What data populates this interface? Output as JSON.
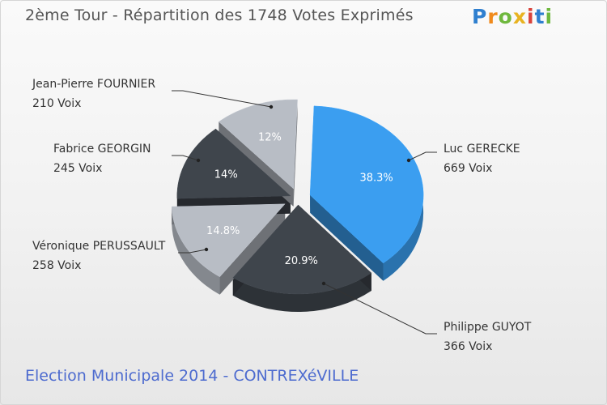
{
  "header": {
    "title": "2ème Tour - Répartition des 1748 Votes Exprimés",
    "logo": [
      "P",
      "r",
      "o",
      "x",
      "i",
      "t",
      "i"
    ],
    "logo_colors": [
      "#2f7fcf",
      "#f08a1c",
      "#6fb83e",
      "#e8b321",
      "#d9423b",
      "#2f7fcf",
      "#6fb83e"
    ]
  },
  "footer": {
    "text": "Election Municipale 2014 - CONTREXéVILLE"
  },
  "chart_data": {
    "type": "pie",
    "total_votes": 1748,
    "slices": [
      {
        "name": "Luc GERECKE",
        "votes": 669,
        "votes_label": "669 Voix",
        "percent": 38.3,
        "percent_label": "38.3%",
        "color": "#3b9ef0"
      },
      {
        "name": "Philippe GUYOT",
        "votes": 366,
        "votes_label": "366 Voix",
        "percent": 20.9,
        "percent_label": "20.9%",
        "color": "#3f454c"
      },
      {
        "name": "Véronique PERUSSAULT",
        "votes": 258,
        "votes_label": "258 Voix",
        "percent": 14.8,
        "percent_label": "14.8%",
        "color": "#b8bdc5"
      },
      {
        "name": "Fabrice GEORGIN",
        "votes": 245,
        "votes_label": "245 Voix",
        "percent": 14,
        "percent_label": "14%",
        "color": "#3f454c"
      },
      {
        "name": "Jean-Pierre FOURNIER",
        "votes": 210,
        "votes_label": "210 Voix",
        "percent": 12,
        "percent_label": "12%",
        "color": "#b8bdc5"
      }
    ]
  }
}
